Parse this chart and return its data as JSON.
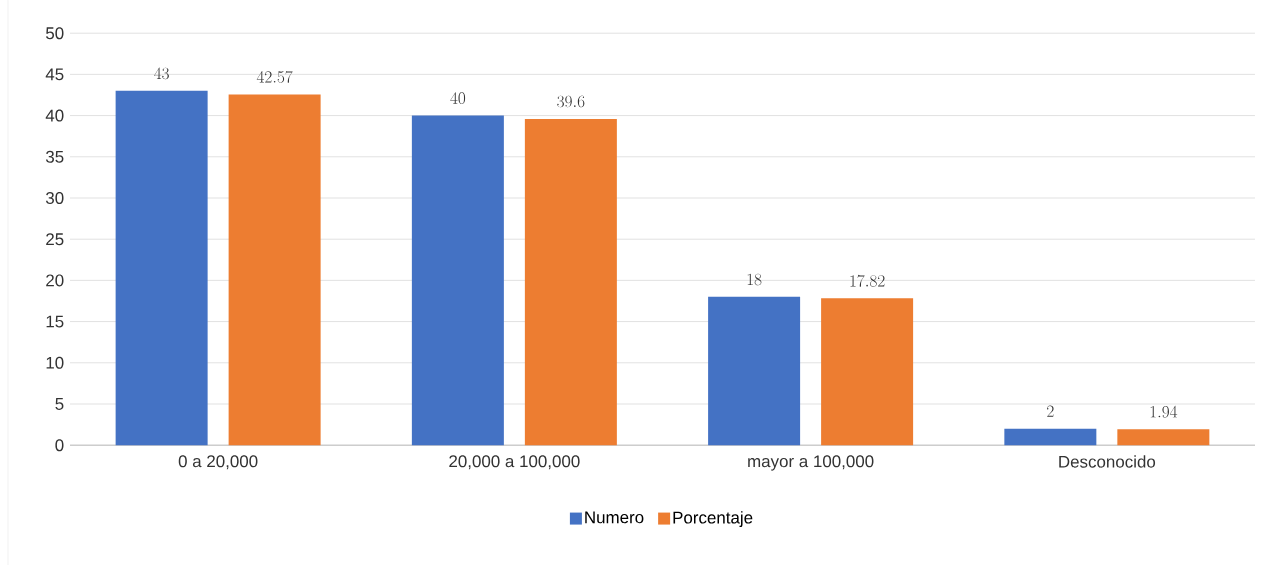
{
  "chart_data": {
    "type": "bar",
    "categories": [
      "0 a 20,000",
      "20,000 a 100,000",
      "mayor a 100,000",
      "Desconocido"
    ],
    "series": [
      {
        "name": "Numero",
        "color": "#4472c4",
        "values": [
          43,
          40,
          18,
          2
        ]
      },
      {
        "name": "Porcentaje",
        "color": "#ed7d31",
        "values": [
          42.57,
          39.6,
          17.82,
          1.94
        ]
      }
    ],
    "ylim": [
      0,
      50
    ],
    "yticks": [
      0,
      5,
      10,
      15,
      20,
      25,
      30,
      35,
      40,
      45,
      50
    ],
    "grid": "y",
    "legend": "bottom",
    "data_labels": true
  }
}
